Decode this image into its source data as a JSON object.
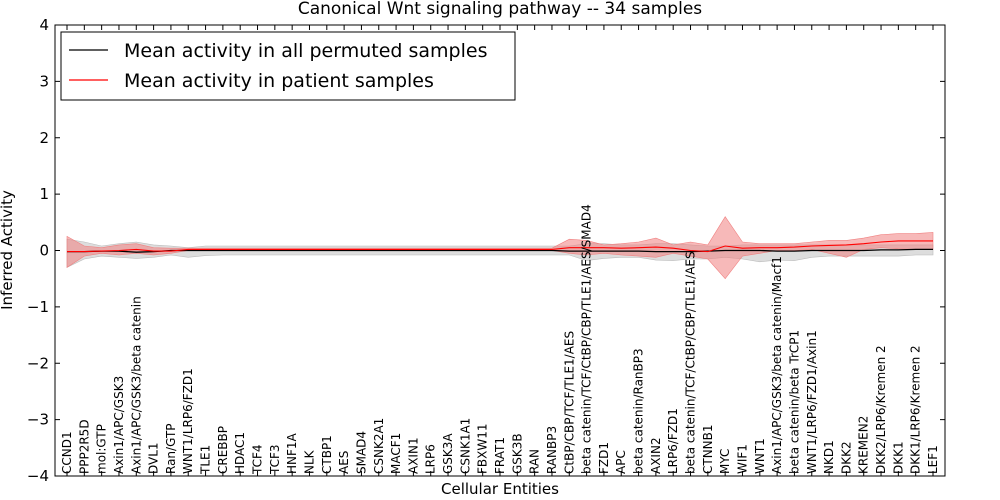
{
  "chart_data": {
    "type": "line",
    "title": "Canonical Wnt signaling pathway -- 34 samples",
    "xlabel": "Cellular Entities",
    "ylabel": "Inferred Activity",
    "ylim": [
      -4,
      4
    ],
    "yticks": [
      -4,
      -3,
      -2,
      -1,
      0,
      1,
      2,
      3,
      4
    ],
    "ytick_labels": [
      "−4",
      "−3",
      "−2",
      "−1",
      "0",
      "1",
      "2",
      "3",
      "4"
    ],
    "legend_position": "top-left",
    "categories": [
      "CCND1",
      "PPP2R5D",
      "mol:GTP",
      "Axin1/APC/GSK3",
      "Axin1/APC/GSK3/beta catenin",
      "DVL1",
      "Ran/GTP",
      "WNT1/LRP6/FZD1",
      "TLE1",
      "CREBBP",
      "HDAC1",
      "TCF4",
      "TCF3",
      "HNF1A",
      "NLK",
      "CTBP1",
      "AES",
      "SMAD4",
      "CSNK2A1",
      "MACF1",
      "AXIN1",
      "LRP6",
      "GSK3A",
      "CSNK1A1",
      "FBXW11",
      "FRAT1",
      "GSK3B",
      "RAN",
      "RANBP3",
      "CtBP/CBP/TCF/TLE1/AES",
      "beta catenin/TCF/CtBP/CBP/TLE1/AES/SMAD4",
      "FZD1",
      "APC",
      "beta catenin/RanBP3",
      "AXIN2",
      "LRP6/FZD1",
      "beta catenin/TCF/CtBP/CBP/TLE1/AES",
      "CTNNB1",
      "MYC",
      "WIF1",
      "WNT1",
      "Axin1/APC/GSK3/beta catenin/Macf1",
      "beta catenin/beta TrCP1",
      "WNT1/LRP6/FZD1/Axin1",
      "NKD1",
      "DKK2",
      "KREMEN2",
      "DKK2/LRP6/Kremen 2",
      "DKK1",
      "DKK1/LRP6/Kremen 2",
      "LEF1"
    ],
    "series": [
      {
        "name": "Mean activity in all permuted samples",
        "color": "#000000",
        "band_color": "#bbbbbb",
        "values": [
          -0.02,
          -0.02,
          -0.01,
          -0.01,
          -0.03,
          -0.02,
          0.0,
          0.0,
          0.0,
          0.0,
          0.0,
          0.0,
          0.0,
          0.0,
          0.0,
          0.0,
          0.0,
          0.0,
          0.0,
          0.0,
          0.0,
          0.0,
          0.0,
          0.0,
          0.0,
          0.0,
          0.0,
          0.0,
          0.0,
          -0.01,
          -0.01,
          -0.01,
          -0.01,
          -0.01,
          -0.02,
          -0.02,
          -0.02,
          -0.01,
          0.0,
          0.0,
          0.0,
          -0.01,
          -0.01,
          0.0,
          0.0,
          0.0,
          0.0,
          0.01,
          0.01,
          0.02,
          0.02
        ],
        "lower": [
          -0.3,
          -0.15,
          -0.1,
          -0.12,
          -0.14,
          -0.12,
          -0.08,
          -0.12,
          -0.09,
          -0.08,
          -0.08,
          -0.08,
          -0.08,
          -0.08,
          -0.08,
          -0.08,
          -0.08,
          -0.08,
          -0.08,
          -0.08,
          -0.08,
          -0.08,
          -0.08,
          -0.08,
          -0.08,
          -0.08,
          -0.08,
          -0.08,
          -0.08,
          -0.08,
          -0.18,
          -0.14,
          -0.12,
          -0.12,
          -0.17,
          -0.18,
          -0.15,
          -0.15,
          -0.12,
          -0.15,
          -0.2,
          -0.17,
          -0.18,
          -0.12,
          -0.1,
          -0.1,
          -0.1,
          -0.1,
          -0.1,
          -0.08,
          -0.08
        ],
        "upper": [
          0.2,
          0.15,
          0.08,
          0.12,
          0.15,
          0.1,
          0.08,
          0.05,
          0.08,
          0.08,
          0.08,
          0.08,
          0.08,
          0.08,
          0.08,
          0.08,
          0.08,
          0.08,
          0.08,
          0.08,
          0.08,
          0.08,
          0.08,
          0.08,
          0.08,
          0.08,
          0.08,
          0.08,
          0.08,
          0.08,
          0.12,
          0.12,
          0.1,
          0.1,
          0.12,
          0.12,
          0.1,
          0.08,
          0.08,
          0.1,
          0.1,
          0.1,
          0.1,
          0.1,
          0.1,
          0.1,
          0.1,
          0.1,
          0.1,
          0.1,
          0.1
        ]
      },
      {
        "name": "Mean activity in patient samples",
        "color": "#ff0000",
        "band_color": "#f08080",
        "values": [
          -0.02,
          -0.02,
          -0.01,
          0.0,
          0.02,
          -0.01,
          -0.01,
          0.02,
          0.02,
          0.02,
          0.02,
          0.02,
          0.02,
          0.02,
          0.02,
          0.02,
          0.02,
          0.02,
          0.02,
          0.02,
          0.02,
          0.02,
          0.02,
          0.02,
          0.02,
          0.02,
          0.02,
          0.02,
          0.02,
          0.05,
          0.05,
          0.05,
          0.04,
          0.05,
          0.06,
          0.04,
          0.0,
          -0.02,
          0.08,
          0.04,
          0.05,
          0.05,
          0.06,
          0.08,
          0.09,
          0.1,
          0.12,
          0.15,
          0.17,
          0.17,
          0.17
        ],
        "lower": [
          -0.3,
          -0.1,
          -0.05,
          -0.08,
          -0.05,
          -0.08,
          -0.05,
          0.0,
          0.0,
          0.0,
          0.0,
          0.0,
          0.0,
          0.0,
          0.0,
          0.0,
          0.0,
          0.0,
          0.0,
          0.0,
          0.0,
          0.0,
          0.0,
          0.0,
          0.0,
          0.0,
          0.0,
          0.0,
          0.0,
          -0.05,
          -0.08,
          -0.05,
          -0.08,
          -0.1,
          -0.12,
          -0.05,
          -0.1,
          -0.15,
          -0.5,
          -0.1,
          -0.05,
          0.0,
          0.0,
          0.02,
          -0.05,
          -0.12,
          0.02,
          0.05,
          0.03,
          0.02,
          0.02
        ],
        "upper": [
          0.25,
          0.08,
          0.05,
          0.1,
          0.12,
          0.05,
          0.04,
          0.04,
          0.04,
          0.04,
          0.04,
          0.04,
          0.04,
          0.04,
          0.04,
          0.04,
          0.04,
          0.04,
          0.04,
          0.04,
          0.04,
          0.04,
          0.04,
          0.04,
          0.04,
          0.04,
          0.04,
          0.04,
          0.04,
          0.2,
          0.18,
          0.1,
          0.12,
          0.15,
          0.22,
          0.1,
          0.15,
          0.1,
          0.6,
          0.15,
          0.12,
          0.12,
          0.12,
          0.15,
          0.18,
          0.18,
          0.22,
          0.28,
          0.3,
          0.3,
          0.32
        ]
      }
    ]
  }
}
